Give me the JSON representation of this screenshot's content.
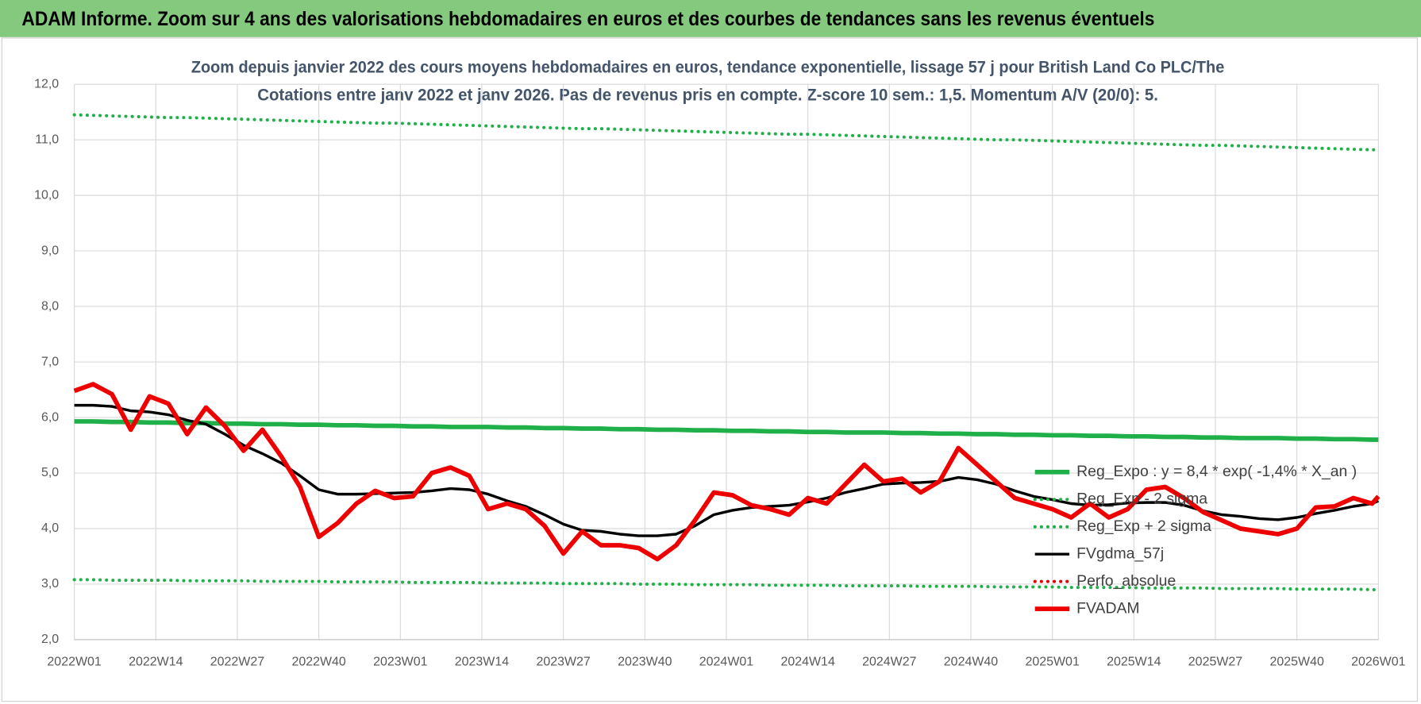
{
  "header": {
    "title": "ADAM Informe. Zoom sur 4 ans des valorisations hebdomadaires en euros et des courbes de tendances sans les revenus éventuels"
  },
  "chart_data": {
    "type": "line",
    "title": "Zoom depuis janvier 2022 des cours moyens hebdomadaires en euros, tendance exponentielle, lissage 57 j pour British Land Co PLC/The",
    "subtitle": "Cotations entre janv 2022 et janv 2026. Pas de revenus pris en compte. Z-score 10 sem.: 1,5. Momentum A/V (20/0): 5.",
    "x": [
      0,
      3,
      6,
      9,
      12,
      15,
      18,
      21,
      24,
      27,
      30,
      33,
      36,
      39,
      42,
      45,
      48,
      51,
      54,
      57,
      60,
      63,
      66,
      69,
      72,
      75,
      78,
      81,
      84,
      87,
      90,
      93,
      96,
      99,
      102,
      105,
      108,
      111,
      114,
      117,
      120,
      123,
      126,
      129,
      132,
      135,
      138,
      141,
      144,
      147,
      150,
      153,
      156,
      159,
      162,
      165,
      168,
      171,
      174,
      177,
      180,
      183,
      186,
      189,
      192,
      195,
      198,
      201,
      204,
      207,
      208
    ],
    "xlim": [
      0,
      208
    ],
    "xticks": [
      {
        "value": 0,
        "label": "2022W01"
      },
      {
        "value": 13,
        "label": "2022W14"
      },
      {
        "value": 26,
        "label": "2022W27"
      },
      {
        "value": 39,
        "label": "2022W40"
      },
      {
        "value": 52,
        "label": "2023W01"
      },
      {
        "value": 65,
        "label": "2023W14"
      },
      {
        "value": 78,
        "label": "2023W27"
      },
      {
        "value": 91,
        "label": "2023W40"
      },
      {
        "value": 104,
        "label": "2024W01"
      },
      {
        "value": 117,
        "label": "2024W14"
      },
      {
        "value": 130,
        "label": "2024W27"
      },
      {
        "value": 143,
        "label": "2024W40"
      },
      {
        "value": 156,
        "label": "2025W01"
      },
      {
        "value": 169,
        "label": "2025W14"
      },
      {
        "value": 182,
        "label": "2025W27"
      },
      {
        "value": 195,
        "label": "2025W40"
      },
      {
        "value": 208,
        "label": "2026W01"
      }
    ],
    "ylim": [
      2,
      12
    ],
    "yticks": [
      {
        "value": 2,
        "label": "2,0"
      },
      {
        "value": 3,
        "label": "3,0"
      },
      {
        "value": 4,
        "label": "4,0"
      },
      {
        "value": 5,
        "label": "5,0"
      },
      {
        "value": 6,
        "label": "6,0"
      },
      {
        "value": 7,
        "label": "7,0"
      },
      {
        "value": 8,
        "label": "8,0"
      },
      {
        "value": 9,
        "label": "9,0"
      },
      {
        "value": 10,
        "label": "10,0"
      },
      {
        "value": 11,
        "label": "11,0"
      },
      {
        "value": 12,
        "label": "12,0"
      }
    ],
    "grid": true,
    "series": [
      {
        "name": "Reg_Expo : y = 8,4 * exp( -1,4% * X_an )",
        "color": "#1fb04a",
        "style": "solid",
        "values": [
          5.93,
          5.93,
          5.92,
          5.92,
          5.91,
          5.91,
          5.9,
          5.9,
          5.89,
          5.89,
          5.88,
          5.88,
          5.87,
          5.87,
          5.86,
          5.86,
          5.85,
          5.85,
          5.84,
          5.84,
          5.83,
          5.83,
          5.83,
          5.82,
          5.82,
          5.81,
          5.81,
          5.8,
          5.8,
          5.79,
          5.79,
          5.78,
          5.78,
          5.77,
          5.77,
          5.76,
          5.76,
          5.75,
          5.75,
          5.74,
          5.74,
          5.73,
          5.73,
          5.73,
          5.72,
          5.72,
          5.71,
          5.71,
          5.7,
          5.7,
          5.69,
          5.69,
          5.68,
          5.68,
          5.67,
          5.67,
          5.66,
          5.66,
          5.65,
          5.65,
          5.64,
          5.64,
          5.63,
          5.63,
          5.63,
          5.62,
          5.62,
          5.61,
          5.61,
          5.6,
          5.6
        ]
      },
      {
        "name": "Reg_Exp - 2 sigma",
        "color": "#1fb04a",
        "style": "dotted",
        "values": [
          3.08,
          3.08,
          3.07,
          3.07,
          3.07,
          3.07,
          3.06,
          3.06,
          3.06,
          3.06,
          3.05,
          3.05,
          3.05,
          3.05,
          3.04,
          3.04,
          3.04,
          3.04,
          3.03,
          3.03,
          3.03,
          3.03,
          3.02,
          3.02,
          3.02,
          3.02,
          3.01,
          3.01,
          3.01,
          3.01,
          3.0,
          3.0,
          3.0,
          2.99,
          2.99,
          2.99,
          2.99,
          2.98,
          2.98,
          2.98,
          2.98,
          2.97,
          2.97,
          2.97,
          2.97,
          2.96,
          2.96,
          2.96,
          2.96,
          2.95,
          2.95,
          2.95,
          2.95,
          2.94,
          2.94,
          2.94,
          2.94,
          2.93,
          2.93,
          2.93,
          2.93,
          2.92,
          2.92,
          2.92,
          2.92,
          2.91,
          2.91,
          2.91,
          2.91,
          2.9,
          2.9
        ]
      },
      {
        "name": "Reg_Exp + 2 sigma",
        "color": "#1fb04a",
        "style": "dotted",
        "values": [
          11.45,
          11.44,
          11.43,
          11.42,
          11.41,
          11.4,
          11.4,
          11.39,
          11.38,
          11.37,
          11.36,
          11.35,
          11.34,
          11.33,
          11.32,
          11.31,
          11.3,
          11.3,
          11.29,
          11.28,
          11.27,
          11.26,
          11.25,
          11.24,
          11.23,
          11.22,
          11.21,
          11.2,
          11.2,
          11.19,
          11.18,
          11.17,
          11.16,
          11.15,
          11.14,
          11.13,
          11.12,
          11.11,
          11.1,
          11.1,
          11.09,
          11.08,
          11.07,
          11.06,
          11.05,
          11.04,
          11.03,
          11.02,
          11.01,
          11.0,
          11.0,
          10.99,
          10.98,
          10.97,
          10.96,
          10.95,
          10.94,
          10.93,
          10.92,
          10.91,
          10.9,
          10.9,
          10.89,
          10.88,
          10.87,
          10.86,
          10.85,
          10.84,
          10.83,
          10.82,
          10.82
        ]
      },
      {
        "name": "FVgdma_57j",
        "color": "#000000",
        "style": "solid",
        "values": [
          6.22,
          6.22,
          6.2,
          6.12,
          6.1,
          6.05,
          5.95,
          5.88,
          5.7,
          5.5,
          5.35,
          5.18,
          4.95,
          4.7,
          4.62,
          4.62,
          4.63,
          4.64,
          4.65,
          4.68,
          4.72,
          4.7,
          4.62,
          4.5,
          4.4,
          4.25,
          4.08,
          3.97,
          3.95,
          3.9,
          3.87,
          3.87,
          3.9,
          4.05,
          4.25,
          4.33,
          4.38,
          4.4,
          4.42,
          4.48,
          4.55,
          4.65,
          4.72,
          4.8,
          4.82,
          4.83,
          4.85,
          4.92,
          4.88,
          4.8,
          4.68,
          4.58,
          4.52,
          4.45,
          4.42,
          4.43,
          4.46,
          4.47,
          4.47,
          4.42,
          4.32,
          4.25,
          4.22,
          4.18,
          4.16,
          4.2,
          4.27,
          4.33,
          4.4,
          4.45,
          4.5
        ]
      },
      {
        "name": "Perfo_absolue",
        "color": "#e00000",
        "style": "dotted",
        "values": [
          null,
          null,
          null,
          null,
          null,
          null,
          null,
          null,
          null,
          null,
          null,
          null,
          null,
          null,
          null,
          null,
          null,
          null,
          null,
          null,
          null,
          null,
          null,
          null,
          null,
          null,
          null,
          null,
          null,
          null,
          null,
          null,
          null,
          null,
          null,
          null,
          null,
          null,
          null,
          null,
          null,
          null,
          null,
          null,
          null,
          null,
          null,
          null,
          null,
          null,
          null,
          null,
          null,
          null,
          null,
          null,
          null,
          null,
          null,
          null,
          null,
          null,
          null,
          null,
          null,
          null,
          null,
          null,
          null,
          null,
          null
        ]
      },
      {
        "name": "FVADAM",
        "color": "#ee0000",
        "style": "solid",
        "values": [
          6.48,
          6.6,
          6.42,
          5.78,
          6.38,
          6.25,
          5.7,
          6.18,
          5.85,
          5.4,
          5.78,
          5.3,
          4.75,
          3.85,
          4.1,
          4.45,
          4.68,
          4.55,
          4.58,
          5.0,
          5.1,
          4.95,
          4.35,
          4.45,
          4.35,
          4.05,
          3.55,
          3.95,
          3.7,
          3.7,
          3.65,
          3.45,
          3.7,
          4.15,
          4.65,
          4.6,
          4.42,
          4.35,
          4.25,
          4.55,
          4.45,
          4.8,
          5.15,
          4.85,
          4.9,
          4.65,
          4.85,
          5.45,
          5.15,
          4.85,
          4.55,
          4.45,
          4.35,
          4.2,
          4.45,
          4.2,
          4.35,
          4.7,
          4.75,
          4.55,
          4.3,
          4.15,
          4.0,
          3.95,
          3.9,
          4.0,
          4.38,
          4.4,
          4.55,
          4.45,
          4.58
        ]
      }
    ]
  }
}
